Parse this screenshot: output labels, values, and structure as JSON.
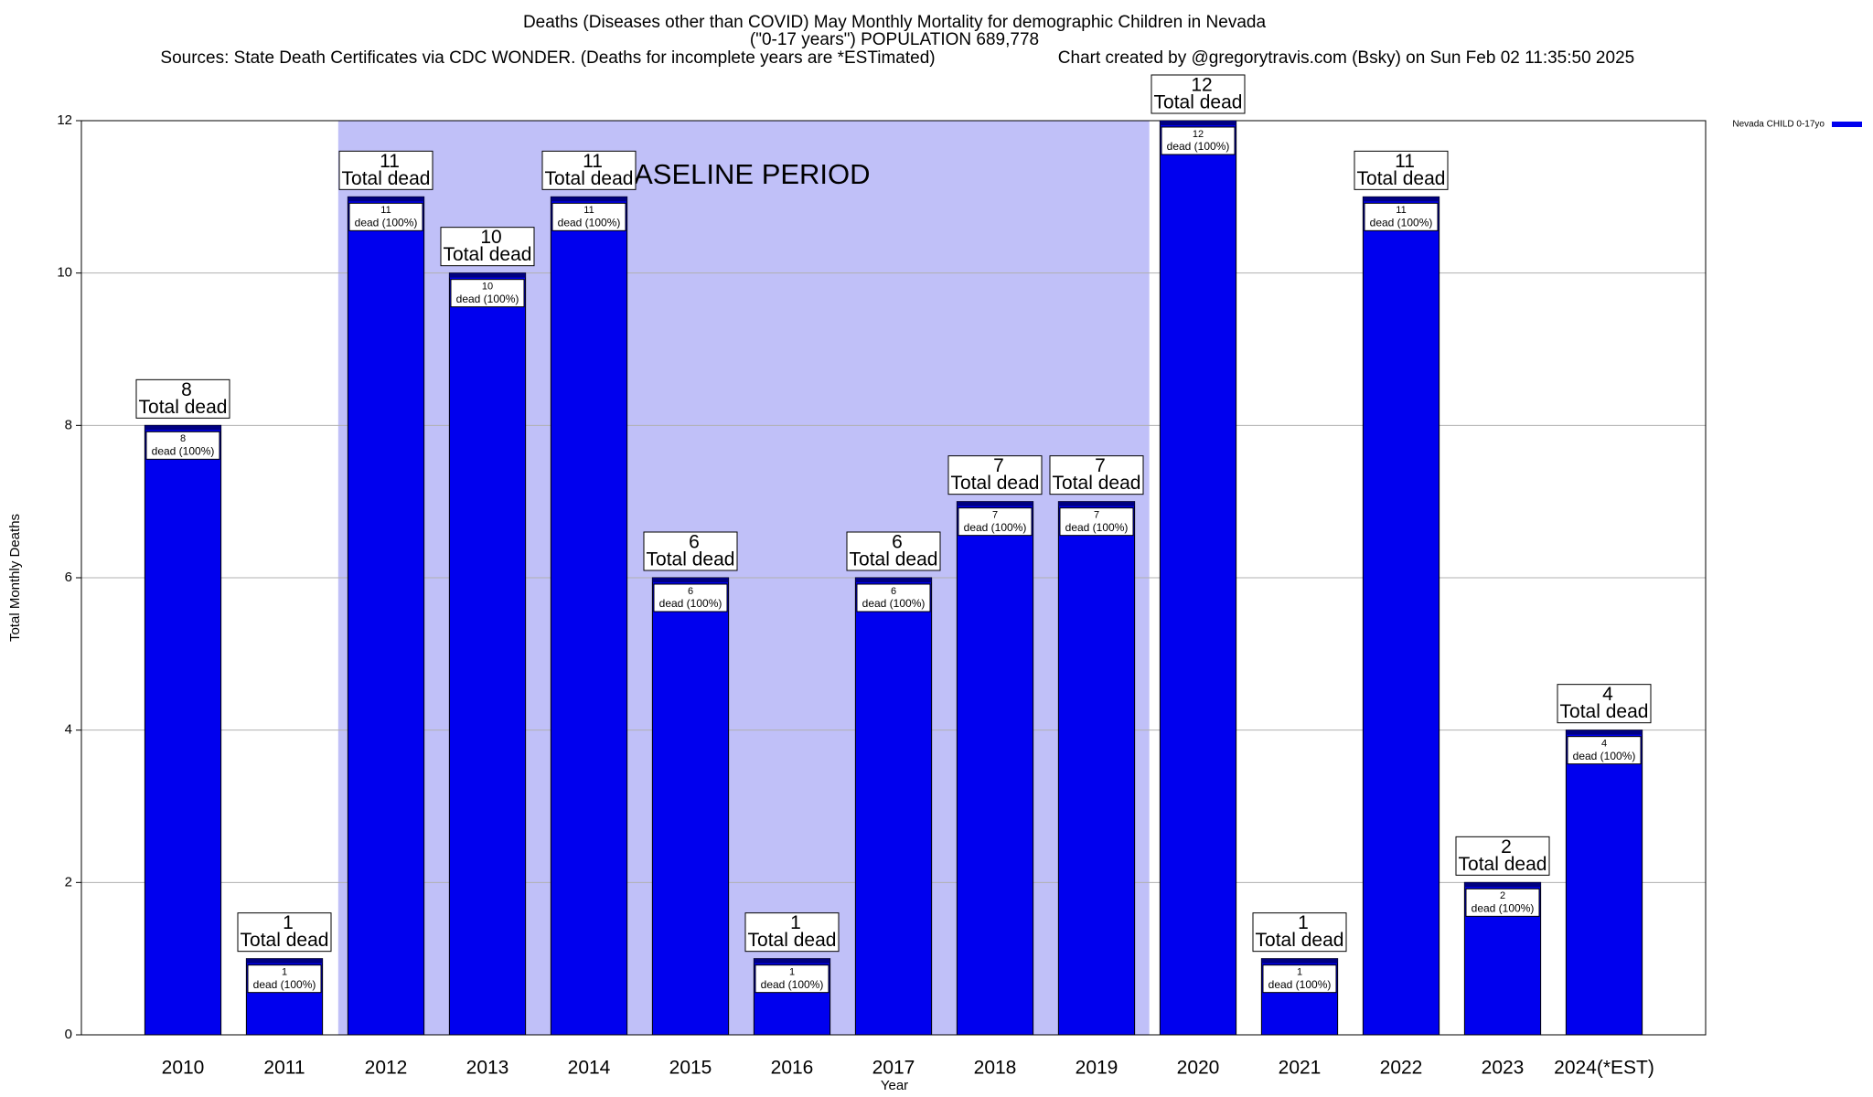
{
  "chart_data": {
    "type": "bar",
    "title": "Deaths (Diseases other than COVID) May Monthly Mortality for demographic Children in Nevada",
    "subtitle": "(\"0-17 years\") POPULATION 689,778",
    "source": "Sources: State Death Certificates via CDC WONDER. (Deaths for incomplete years are *ESTimated)",
    "credit": "Chart created by @gregorytravis.com (Bsky) on Sun Feb 02 11:35:50 2025",
    "annotation": "BASELINE PERIOD",
    "x_label": "Year",
    "y_label": "Total Monthly Deaths",
    "categories": [
      "2010",
      "2011",
      "2012",
      "2013",
      "2014",
      "2015",
      "2016",
      "2017",
      "2018",
      "2019",
      "2020",
      "2021",
      "2022",
      "2023",
      "2024(*EST)"
    ],
    "series": [
      {
        "name": "Nevada CHILD 0-17yo",
        "color": "#0000ee",
        "values": [
          8,
          1,
          11,
          10,
          11,
          6,
          1,
          6,
          7,
          7,
          12,
          1,
          11,
          2,
          4
        ]
      }
    ],
    "total_label": "Total dead",
    "segment_label": "dead (100%)",
    "ylim": [
      0,
      12
    ],
    "yticks": [
      0,
      2,
      4,
      6,
      8,
      10,
      12
    ],
    "grid": true,
    "legend": "top-right"
  }
}
